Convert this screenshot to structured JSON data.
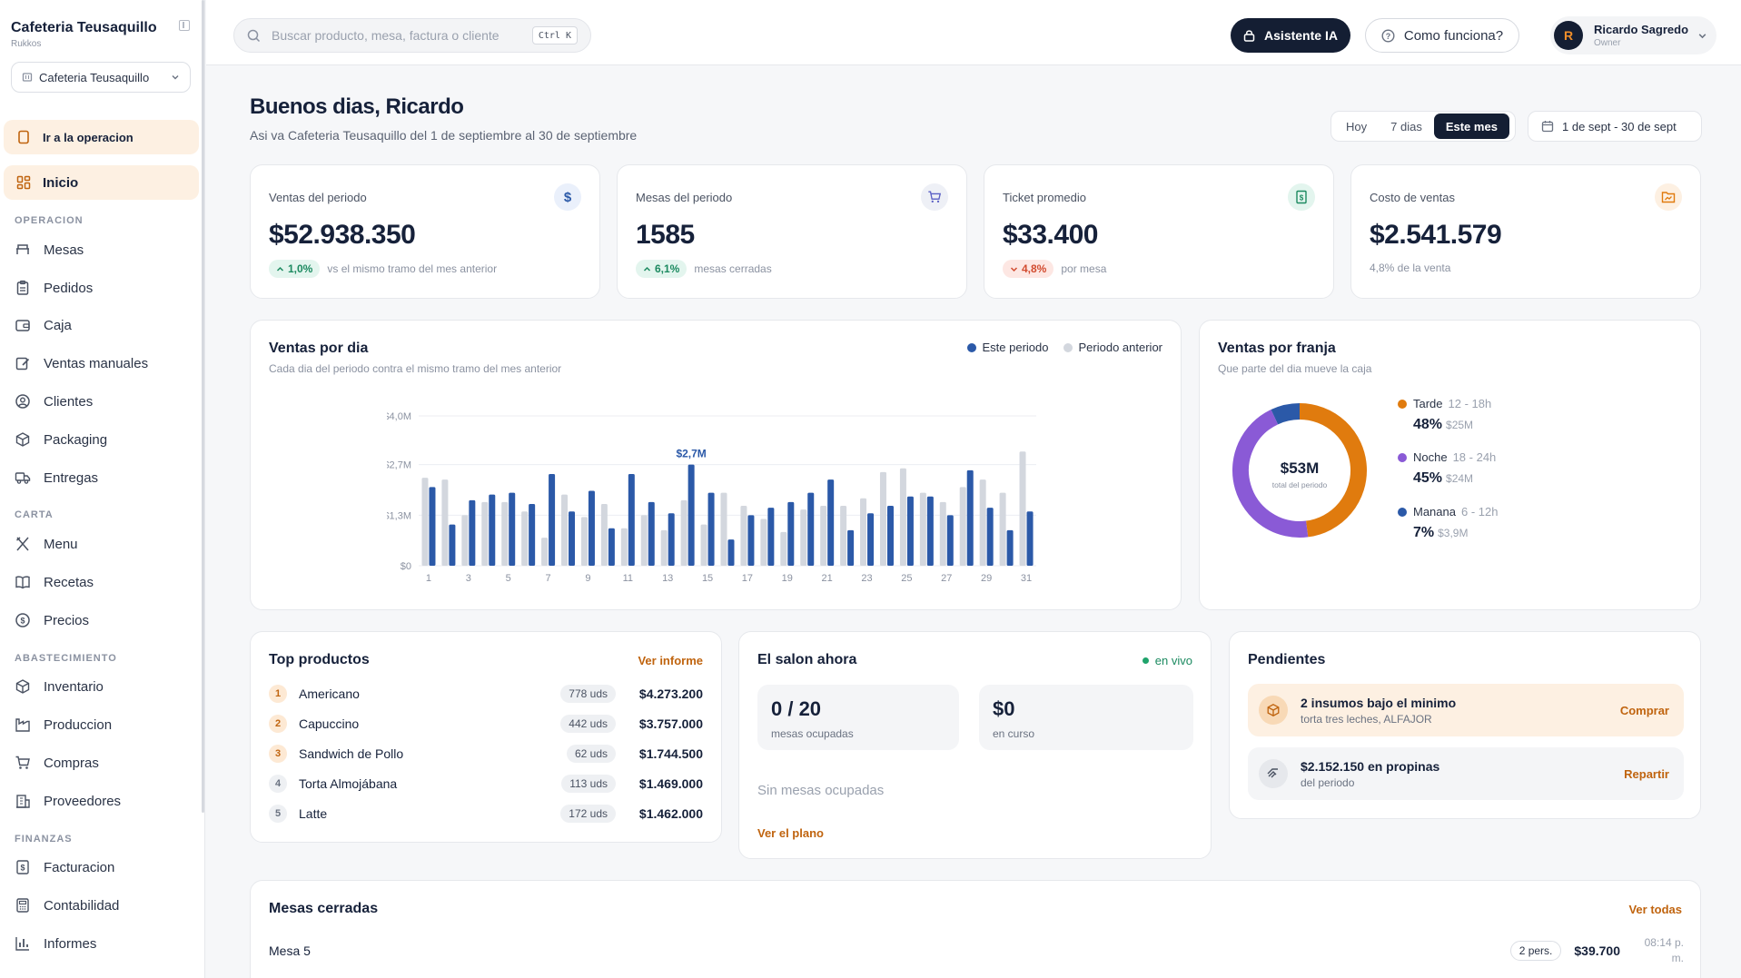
{
  "sidebar": {
    "brand_title": "Cafeteria Teusaquillo",
    "brand_sub": "Rukkos",
    "store_select": "Cafeteria Teusaquillo",
    "op_button": "Ir a la operacion",
    "home": "Inicio",
    "sections": {
      "operacion": "OPERACION",
      "carta": "CARTA",
      "abastecimiento": "ABASTECIMIENTO",
      "finanzas": "FINANZAS"
    },
    "items": {
      "mesas": "Mesas",
      "pedidos": "Pedidos",
      "caja": "Caja",
      "ventas_manuales": "Ventas manuales",
      "clientes": "Clientes",
      "packaging": "Packaging",
      "entregas": "Entregas",
      "menu": "Menu",
      "recetas": "Recetas",
      "precios": "Precios",
      "inventario": "Inventario",
      "produccion": "Produccion",
      "compras": "Compras",
      "proveedores": "Proveedores",
      "facturacion": "Facturacion",
      "contabilidad": "Contabilidad",
      "informes": "Informes"
    }
  },
  "topbar": {
    "search_placeholder": "Buscar producto, mesa, factura o cliente",
    "shortcut": "Ctrl K",
    "ai_button": "Asistente IA",
    "help_button": "Como funciona?",
    "user_initial": "R",
    "user_name": "Ricardo Sagredo",
    "user_role": "Owner"
  },
  "header": {
    "greeting": "Buenos dias, Ricardo",
    "subtitle": "Asi va Cafeteria Teusaquillo del 1 de septiembre al 30 de septiembre",
    "periods": [
      "Hoy",
      "7 dias",
      "Este mes"
    ],
    "active_period": "Este mes",
    "date_range": "1 de sept - 30 de sept"
  },
  "kpis": {
    "ventas": {
      "label": "Ventas del periodo",
      "value": "$52.938.350",
      "delta": "1,0%",
      "note": "vs el mismo tramo del mes anterior"
    },
    "mesas": {
      "label": "Mesas del periodo",
      "value": "1585",
      "delta": "6,1%",
      "note": "mesas cerradas"
    },
    "ticket": {
      "label": "Ticket promedio",
      "value": "$33.400",
      "delta": "4,8%",
      "note": "por mesa"
    },
    "costo": {
      "label": "Costo de ventas",
      "value": "$2.541.579",
      "note": "4,8% de la venta"
    }
  },
  "colors": {
    "current": "#2b59a8",
    "previous": "#d3d7de",
    "tarde": "#e07b0e",
    "noche": "#8a5ad6",
    "manana": "#2b59a8",
    "accent": "#c0640f",
    "dark": "#141e33"
  },
  "ventas_dia": {
    "title": "Ventas por dia",
    "subtitle": "Cada dia del periodo contra el mismo tramo del mes anterior",
    "legend_current": "Este periodo",
    "legend_previous": "Periodo anterior",
    "callout": "$2,7M"
  },
  "chart_data": [
    {
      "type": "bar",
      "title": "Ventas por dia",
      "x": [
        1,
        2,
        3,
        4,
        5,
        6,
        7,
        8,
        9,
        10,
        11,
        12,
        13,
        14,
        15,
        16,
        17,
        18,
        19,
        20,
        21,
        22,
        23,
        24,
        25,
        26,
        27,
        28,
        29,
        30,
        31
      ],
      "x_tick_labels": [
        "1",
        "3",
        "5",
        "7",
        "9",
        "11",
        "13",
        "15",
        "17",
        "19",
        "21",
        "23",
        "25",
        "27",
        "29",
        "31"
      ],
      "y_tick_labels": [
        "$0",
        "$1,3M",
        "$2,7M",
        "$4,0M"
      ],
      "ylim": [
        0,
        4.0
      ],
      "y_unit": "M COP",
      "grid": true,
      "legend_position": "top-right",
      "series": [
        {
          "name": "Periodo anterior",
          "values": [
            2.35,
            2.3,
            1.35,
            1.7,
            1.7,
            1.45,
            0.75,
            1.9,
            1.3,
            1.65,
            1.0,
            1.35,
            0.95,
            1.75,
            1.1,
            1.95,
            1.6,
            1.25,
            0.9,
            1.5,
            1.6,
            1.6,
            1.8,
            2.5,
            2.6,
            1.95,
            1.7,
            2.1,
            2.3,
            1.95,
            3.05
          ]
        },
        {
          "name": "Este periodo",
          "values": [
            2.1,
            1.1,
            1.75,
            1.9,
            1.95,
            1.65,
            2.45,
            1.45,
            2.0,
            1.0,
            2.45,
            1.7,
            1.4,
            2.7,
            1.95,
            0.7,
            1.35,
            1.55,
            1.7,
            1.95,
            2.3,
            0.95,
            1.4,
            1.6,
            1.85,
            1.85,
            1.35,
            2.55,
            1.55,
            0.95,
            1.45
          ]
        }
      ],
      "annotations": [
        {
          "x": 14,
          "label": "$2,7M"
        }
      ]
    },
    {
      "type": "pie",
      "title": "Ventas por franja",
      "center_value": "$53M",
      "center_label": "total del periodo",
      "categories": [
        "Tarde",
        "Noche",
        "Manana"
      ],
      "values": [
        48,
        45,
        7
      ],
      "amounts": [
        "$25M",
        "$24M",
        "$3,9M"
      ],
      "ranges": [
        "12 - 18h",
        "18 - 24h",
        "6 - 12h"
      ]
    }
  ],
  "franja": {
    "title": "Ventas por franja",
    "subtitle": "Que parte del dia mueve la caja",
    "items": [
      {
        "name": "Tarde",
        "range": "12 - 18h",
        "pct": "48%",
        "amount": "$25M"
      },
      {
        "name": "Noche",
        "range": "18 - 24h",
        "pct": "45%",
        "amount": "$24M"
      },
      {
        "name": "Manana",
        "range": "6 - 12h",
        "pct": "7%",
        "amount": "$3,9M"
      }
    ]
  },
  "top_productos": {
    "title": "Top productos",
    "link": "Ver informe",
    "rows": [
      {
        "rank": "1",
        "name": "Americano",
        "uds": "778 uds",
        "amount": "$4.273.200"
      },
      {
        "rank": "2",
        "name": "Capuccino",
        "uds": "442 uds",
        "amount": "$3.757.000"
      },
      {
        "rank": "3",
        "name": "Sandwich de Pollo",
        "uds": "62 uds",
        "amount": "$1.744.500"
      },
      {
        "rank": "4",
        "name": "Torta Almojábana",
        "uds": "113 uds",
        "amount": "$1.469.000"
      },
      {
        "rank": "5",
        "name": "Latte",
        "uds": "172 uds",
        "amount": "$1.462.000"
      }
    ]
  },
  "salon": {
    "title": "El salon ahora",
    "live": "en vivo",
    "occupied_value": "0 / 20",
    "occupied_label": "mesas ocupadas",
    "current_value": "$0",
    "current_label": "en curso",
    "empty": "Sin mesas ocupadas",
    "link": "Ver el plano"
  },
  "pendientes": {
    "title": "Pendientes",
    "items": [
      {
        "title": "2 insumos bajo el minimo",
        "sub": "torta tres leches, ALFAJOR",
        "action": "Comprar"
      },
      {
        "title": "$2.152.150 en propinas",
        "sub": "del periodo",
        "action": "Repartir"
      }
    ]
  },
  "mesas_cerradas": {
    "title": "Mesas cerradas",
    "link": "Ver todas",
    "rows": [
      {
        "name": "Mesa 5",
        "pers": "2 pers.",
        "amount": "$39.700",
        "time": "08:14 p. m."
      }
    ]
  }
}
